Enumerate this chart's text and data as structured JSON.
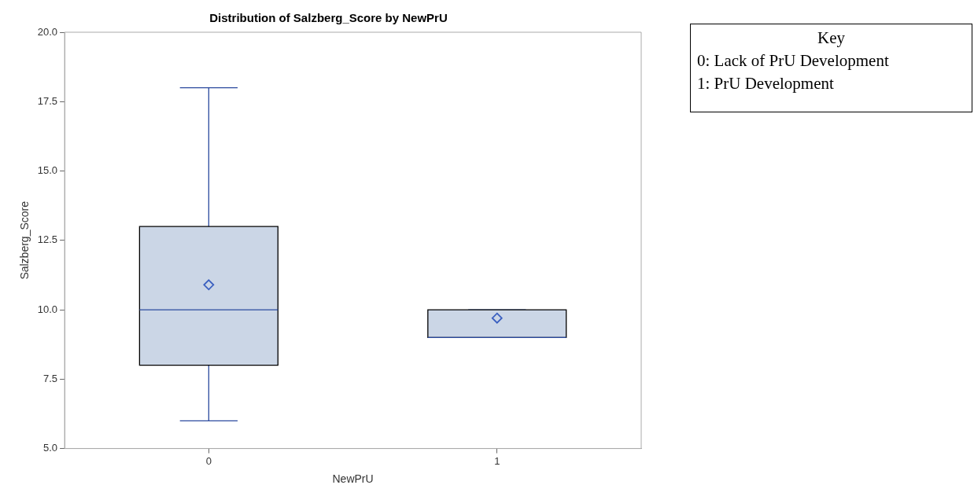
{
  "chart_data": {
    "type": "box",
    "title": "Distribution of Salzberg_Score by NewPrU",
    "xlabel": "NewPrU",
    "ylabel": "Salzberg_Score",
    "categories": [
      "0",
      "1"
    ],
    "series": [
      {
        "color": "#cbd6e6",
        "boxes": [
          {
            "low": 6,
            "q1": 8,
            "median": 10,
            "q3": 13,
            "high": 18,
            "mean": 10.9
          },
          {
            "low": 9,
            "q1": 9,
            "median": 9,
            "q3": 10,
            "high": 10,
            "mean": 9.7
          }
        ]
      }
    ],
    "ylim": [
      5,
      20
    ],
    "yticks": [
      {
        "value": 5,
        "label": "5.0"
      },
      {
        "value": 7.5,
        "label": "7.5"
      },
      {
        "value": 10,
        "label": "10.0"
      },
      {
        "value": 12.5,
        "label": "12.5"
      },
      {
        "value": 15,
        "label": "15.0"
      },
      {
        "value": 17.5,
        "label": "17.5"
      },
      {
        "value": 20,
        "label": "20.0"
      }
    ],
    "grid": false,
    "legend": false,
    "marker": "diamond",
    "annotations": [
      "Key",
      "0: Lack of PrU Development",
      "1: PrU Development"
    ]
  }
}
